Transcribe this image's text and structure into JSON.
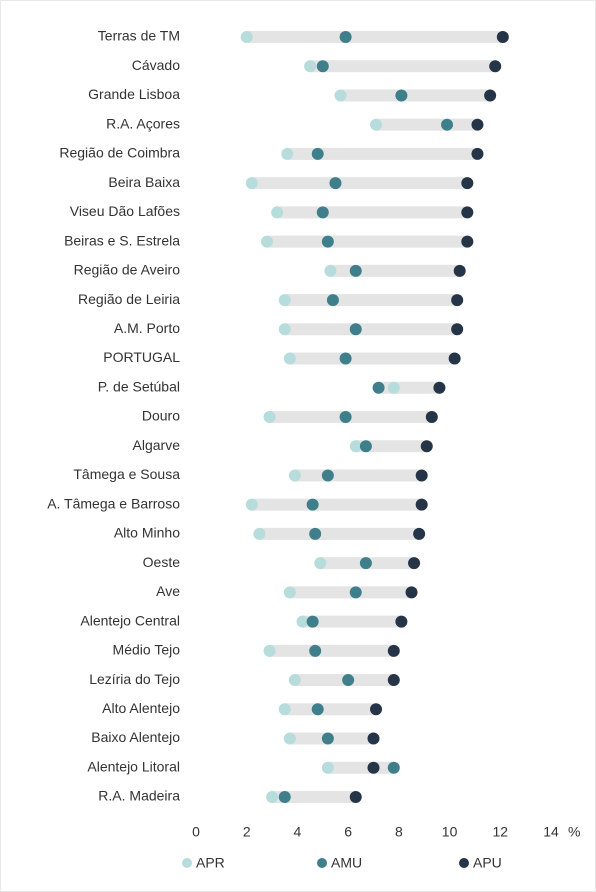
{
  "chart_data": {
    "type": "dot",
    "categories": [
      "Terras de TM",
      "Cávado",
      "Grande Lisboa",
      "R.A. Açores",
      "Região de Coimbra",
      "Beira Baixa",
      "Viseu Dão Lafões",
      "Beiras e S. Estrela",
      "Região de Aveiro",
      "Região de Leiria",
      "A.M. Porto",
      "PORTUGAL",
      "P. de Setúbal",
      "Douro",
      "Algarve",
      "Tâmega e Sousa",
      "A. Tâmega e Barroso",
      "Alto Minho",
      "Oeste",
      "Ave",
      "Alentejo Central",
      "Médio Tejo",
      "Lezíria do Tejo",
      "Alto Alentejo",
      "Baixo Alentejo",
      "Alentejo Litoral",
      "R.A. Madeira"
    ],
    "series": [
      {
        "name": "APR",
        "color": "#b7dcdc",
        "values": [
          2.0,
          4.5,
          5.7,
          7.1,
          3.6,
          2.2,
          3.2,
          2.8,
          5.3,
          3.5,
          3.5,
          3.7,
          7.8,
          2.9,
          6.3,
          3.9,
          2.2,
          2.5,
          4.9,
          3.7,
          4.2,
          2.9,
          3.9,
          3.5,
          3.7,
          5.2,
          3.0
        ]
      },
      {
        "name": "AMU",
        "color": "#3e7f8b",
        "values": [
          5.9,
          5.0,
          8.1,
          9.9,
          4.8,
          5.5,
          5.0,
          5.2,
          6.3,
          5.4,
          6.3,
          5.9,
          7.2,
          5.9,
          6.7,
          5.2,
          4.6,
          4.7,
          6.7,
          6.3,
          4.6,
          4.7,
          6.0,
          4.8,
          5.2,
          7.8,
          3.5
        ]
      },
      {
        "name": "APU",
        "color": "#253447",
        "values": [
          12.1,
          11.8,
          11.6,
          11.1,
          11.1,
          10.7,
          10.7,
          10.7,
          10.4,
          10.3,
          10.3,
          10.2,
          9.6,
          9.3,
          9.1,
          8.9,
          8.9,
          8.8,
          8.6,
          8.5,
          8.1,
          7.8,
          7.8,
          7.1,
          7.0,
          7.0,
          6.3
        ]
      }
    ],
    "xlabel": "%",
    "xlim": [
      0,
      14
    ],
    "xticks": [
      0,
      2,
      4,
      6,
      8,
      10,
      12,
      14
    ],
    "range_color": "#e4e4e4"
  }
}
